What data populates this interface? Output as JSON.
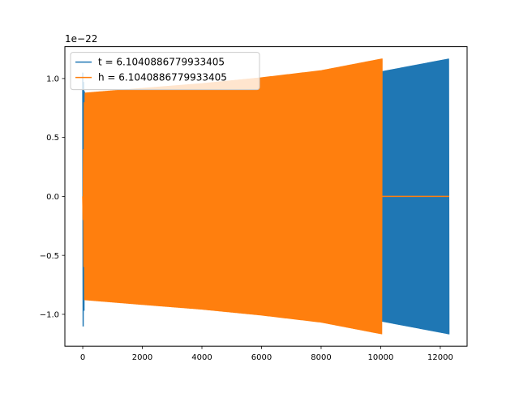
{
  "chart_data": {
    "type": "line",
    "title": "",
    "xlabel": "",
    "ylabel": "",
    "offset_text": "1e−22",
    "xlim": [
      -600,
      12900
    ],
    "ylim": [
      -1.27,
      1.27
    ],
    "x_ticks": [
      0,
      2000,
      4000,
      6000,
      8000,
      10000,
      12000
    ],
    "x_tick_labels": [
      "0",
      "2000",
      "4000",
      "6000",
      "8000",
      "10000",
      "12000"
    ],
    "y_ticks": [
      -1.0,
      -0.5,
      0.0,
      0.5,
      1.0
    ],
    "y_tick_labels": [
      "−1.0",
      "−0.5",
      "0.0",
      "0.5",
      "1.0"
    ],
    "grid": false,
    "legend_position": "upper-left",
    "series": [
      {
        "name": "t = 6.1040886779933405",
        "color": "#1f77b4",
        "kind": "oscillation-envelope",
        "x_start": 0,
        "x_end": 12300,
        "envelope_upper": [
          [
            0,
            1.05
          ],
          [
            60,
            0.875
          ],
          [
            2000,
            0.905
          ],
          [
            4000,
            0.94
          ],
          [
            6000,
            0.98
          ],
          [
            8000,
            1.02
          ],
          [
            10000,
            1.06
          ],
          [
            12300,
            1.17
          ]
        ],
        "envelope_lower": [
          [
            0,
            -1.17
          ],
          [
            60,
            -0.875
          ],
          [
            2000,
            -0.905
          ],
          [
            4000,
            -0.94
          ],
          [
            6000,
            -0.98
          ],
          [
            8000,
            -1.02
          ],
          [
            10000,
            -1.06
          ],
          [
            12300,
            -1.17
          ]
        ]
      },
      {
        "name": "h = 6.1040886779933405",
        "color": "#ff7f0e",
        "kind": "oscillation-envelope",
        "x_start": 0,
        "x_end": 10050,
        "tail_x_end": 12300,
        "tail_value": 0.0,
        "envelope_upper": [
          [
            0,
            0.0
          ],
          [
            60,
            0.88
          ],
          [
            2000,
            0.92
          ],
          [
            4000,
            0.96
          ],
          [
            6000,
            1.01
          ],
          [
            8000,
            1.07
          ],
          [
            10050,
            1.17
          ]
        ],
        "envelope_lower": [
          [
            0,
            0.0
          ],
          [
            60,
            -0.88
          ],
          [
            2000,
            -0.92
          ],
          [
            4000,
            -0.96
          ],
          [
            6000,
            -1.01
          ],
          [
            8000,
            -1.07
          ],
          [
            10050,
            -1.17
          ]
        ]
      }
    ]
  }
}
